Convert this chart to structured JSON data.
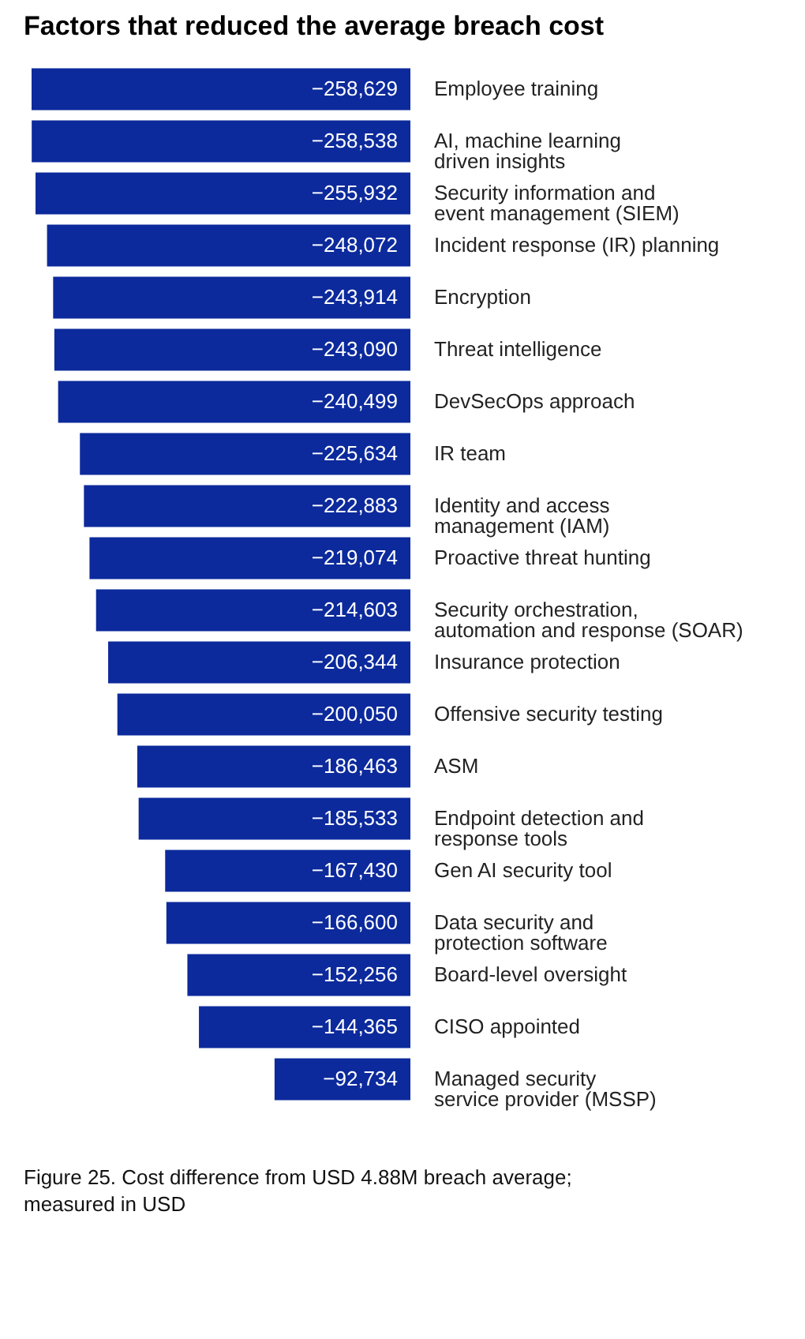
{
  "chart_data": {
    "type": "bar",
    "orientation": "horizontal",
    "title": "Factors that reduced the average breach cost",
    "categories": [
      "Employee training",
      "AI, machine learning\ndriven insights",
      "Security information and\nevent management (SIEM)",
      "Incident response (IR) planning",
      "Encryption",
      "Threat intelligence",
      "DevSecOps approach",
      "IR team",
      "Identity and access\nmanagement (IAM)",
      "Proactive threat hunting",
      "Security orchestration,\nautomation and response (SOAR)",
      "Insurance protection",
      "Offensive security testing",
      "ASM",
      "Endpoint detection and\nresponse tools",
      "Gen AI security tool",
      "Data security and\nprotection software",
      "Board-level oversight",
      "CISO appointed",
      "Managed security\nservice provider (MSSP)"
    ],
    "values": [
      -258629,
      -258538,
      -255932,
      -248072,
      -243914,
      -243090,
      -240499,
      -225634,
      -222883,
      -219074,
      -214603,
      -206344,
      -200050,
      -186463,
      -185533,
      -167430,
      -166600,
      -152256,
      -144365,
      -92734
    ],
    "value_labels": [
      "−258,629",
      "−258,538",
      "−255,932",
      "−248,072",
      "−243,914",
      "−243,090",
      "−240,499",
      "−225,634",
      "−222,883",
      "−219,074",
      "−214,603",
      "−206,344",
      "−200,050",
      "−186,463",
      "−185,533",
      "−167,430",
      "−166,600",
      "−152,256",
      "−144,365",
      "−92,734"
    ],
    "color": "#0c2a9c",
    "annotations": [
      "Figure 25. Cost difference from USD 4.88M breach average;\nmeasured in USD"
    ]
  }
}
